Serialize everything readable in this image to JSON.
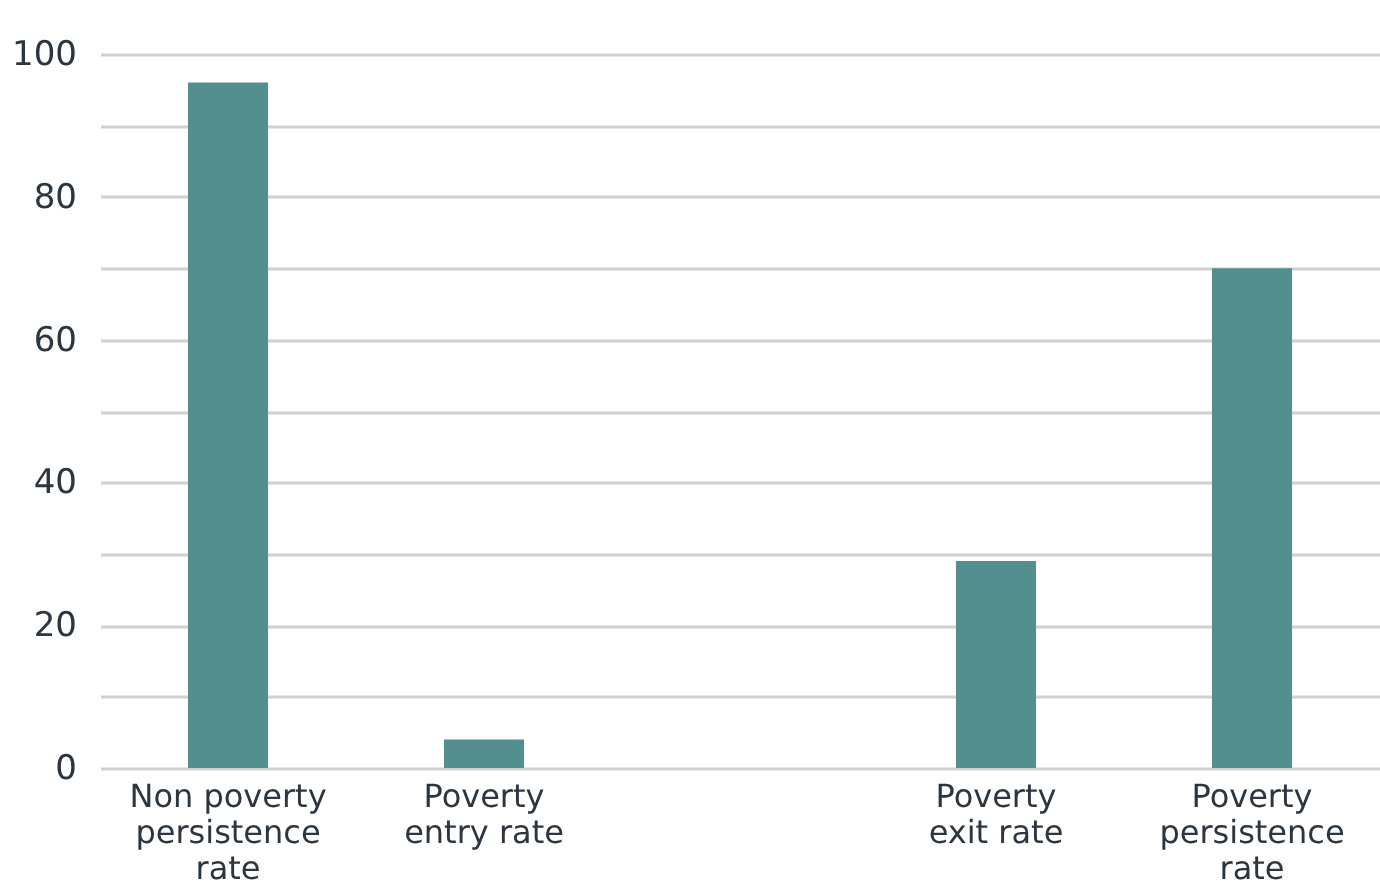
{
  "chart_data": {
    "type": "bar",
    "categories": [
      "Non poverty persistence rate",
      "Poverty entry rate",
      null,
      "Poverty exit rate",
      "Poverty persistence rate"
    ],
    "values": [
      96,
      4,
      null,
      29,
      70
    ],
    "color": "#548f90",
    "ylim": [
      0,
      100
    ],
    "yticks": [
      0,
      {
        "value": 10,
        "label": null
      },
      20,
      {
        "value": 30,
        "label": null
      },
      40,
      {
        "value": 50,
        "label": null
      },
      60,
      {
        "value": 70,
        "label": null
      },
      80,
      {
        "value": 90,
        "label": null
      },
      100
    ],
    "grid": "y"
  }
}
